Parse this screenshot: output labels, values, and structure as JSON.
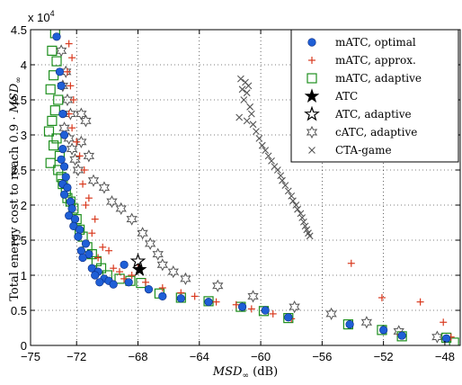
{
  "chart_data": {
    "type": "scatter",
    "xlabel_math": "MSD",
    "xlabel_sub": "∞",
    "xlabel_unit": " (dB)",
    "ylabel_prefix": "Total energy cost to reach 0.9 · ",
    "ylabel_math": "MSD",
    "ylabel_sub": "∞",
    "exponent_base": "x 10",
    "exponent_power": "4",
    "xlim": [
      -75,
      -47
    ],
    "ylim": [
      0,
      45000
    ],
    "xticks": [
      "−75",
      "−72",
      "−68",
      "−64",
      "−60",
      "−56",
      "−52",
      "−48"
    ],
    "xtick_values": [
      -75,
      -72,
      -68,
      -64,
      -60,
      -56,
      -52,
      -48
    ],
    "yticks": [
      "0",
      "0.5",
      "1",
      "1.5",
      "2",
      "2.5",
      "3",
      "3.5",
      "4",
      "4.5"
    ],
    "ytick_values": [
      0,
      5000,
      10000,
      15000,
      20000,
      25000,
      30000,
      35000,
      40000,
      45000
    ],
    "grid": true,
    "legend_position": "top-right",
    "series": [
      {
        "name": "mATC, optimal",
        "marker": "circle",
        "color": "#1f5fd6",
        "x": [
          -73.3,
          -73.1,
          -73.0,
          -72.9,
          -72.8,
          -72.9,
          -73.0,
          -72.8,
          -72.7,
          -72.9,
          -72.6,
          -72.8,
          -72.4,
          -72.3,
          -72.5,
          -72.1,
          -72.2,
          -71.8,
          -71.9,
          -71.4,
          -71.7,
          -71.2,
          -71.6,
          -71.0,
          -70.6,
          -70.8,
          -70.2,
          -70.5,
          -69.9,
          -69.6,
          -68.9,
          -68.6,
          -67.3,
          -66.4,
          -65.2,
          -63.4,
          -61.2,
          -59.7,
          -58.2,
          -54.2,
          -52.0,
          -50.8,
          -47.9
        ],
        "y": [
          44000,
          39000,
          37000,
          33000,
          30000,
          28000,
          26500,
          25500,
          24000,
          23000,
          22500,
          21500,
          20500,
          19500,
          18500,
          18000,
          17000,
          16500,
          15500,
          14500,
          13500,
          13000,
          12500,
          11000,
          10500,
          10000,
          9500,
          9000,
          9200,
          8700,
          11500,
          9000,
          8000,
          7000,
          6700,
          6200,
          5500,
          5000,
          4000,
          3000,
          2200,
          1400,
          1000
        ]
      },
      {
        "name": "mATC, approx.",
        "marker": "plus",
        "color": "#d93a1f",
        "x": [
          -72.5,
          -72.3,
          -72.6,
          -72.4,
          -72.2,
          -72.5,
          -72.3,
          -72.0,
          -71.8,
          -71.5,
          -71.6,
          -71.2,
          -71.4,
          -70.8,
          -71.0,
          -70.3,
          -70.6,
          -69.9,
          -69.6,
          -69.2,
          -68.9,
          -68.4,
          -68.0,
          -67.5,
          -66.4,
          -65.2,
          -64.3,
          -62.9,
          -61.6,
          -60.6,
          -59.2,
          -58.0,
          -54.1,
          -52.1,
          -49.6,
          -48.1,
          -47.6,
          -50.9
        ],
        "y": [
          43000,
          41000,
          39000,
          37000,
          35000,
          33000,
          31000,
          29000,
          27000,
          25000,
          23000,
          21000,
          20000,
          18000,
          16000,
          14000,
          12500,
          13500,
          11000,
          10500,
          9500,
          10000,
          11500,
          9000,
          8200,
          7500,
          7000,
          6200,
          5800,
          5200,
          4500,
          3800,
          11700,
          6800,
          6200,
          3300,
          1200,
          1500
        ]
      },
      {
        "name": "mATC, adaptive",
        "marker": "square",
        "color": "#1e8f1e",
        "x": [
          -73.4,
          -73.6,
          -73.3,
          -73.5,
          -73.7,
          -73.2,
          -73.4,
          -73.6,
          -73.8,
          -73.3,
          -73.5,
          -73.1,
          -73.7,
          -73.2,
          -73.0,
          -72.9,
          -72.7,
          -72.6,
          -72.4,
          -72.2,
          -72.0,
          -71.8,
          -71.6,
          -71.3,
          -71.0,
          -70.7,
          -70.4,
          -70.0,
          -69.2,
          -68.5,
          -67.8,
          -66.6,
          -65.2,
          -63.4,
          -61.3,
          -59.8,
          -58.2,
          -54.3,
          -52.1,
          -50.8,
          -47.9,
          -47.4
        ],
        "y": [
          44500,
          42000,
          40500,
          38500,
          36500,
          35000,
          33500,
          32000,
          30500,
          29500,
          28500,
          27000,
          26000,
          25000,
          24000,
          23000,
          22000,
          21000,
          20500,
          19500,
          18000,
          16500,
          15500,
          14000,
          13000,
          12000,
          11000,
          10000,
          9500,
          9200,
          8900,
          7400,
          6800,
          6300,
          5500,
          4900,
          3900,
          3000,
          2200,
          1300,
          1100,
          400
        ]
      },
      {
        "name": "ATC",
        "marker": "star-filled",
        "color": "#000000",
        "x": [
          -67.9
        ],
        "y": [
          10800
        ]
      },
      {
        "name": "ATC, adaptive",
        "marker": "star-open",
        "color": "#000000",
        "x": [
          -68.0
        ],
        "y": [
          12000
        ]
      },
      {
        "name": "cATC, adaptive",
        "marker": "hexstar",
        "color": "#555555",
        "x": [
          -73.0,
          -72.7,
          -72.9,
          -72.6,
          -72.4,
          -72.8,
          -72.5,
          -72.3,
          -72.1,
          -71.9,
          -71.7,
          -71.4,
          -71.7,
          -71.2,
          -70.9,
          -70.2,
          -69.7,
          -69.1,
          -68.4,
          -67.7,
          -67.2,
          -66.7,
          -66.4,
          -65.7,
          -64.9,
          -62.8,
          -60.5,
          -57.8,
          -55.4,
          -53.1,
          -51.0,
          -48.5
        ],
        "y": [
          42000,
          39000,
          37000,
          35000,
          33000,
          31000,
          29500,
          28000,
          26500,
          25000,
          33000,
          32000,
          29000,
          27000,
          23500,
          22500,
          20500,
          19500,
          18000,
          16000,
          14500,
          13000,
          11500,
          10500,
          9500,
          8500,
          7000,
          5500,
          4500,
          3300,
          2000,
          1200
        ]
      },
      {
        "name": "CTA-game",
        "marker": "x",
        "color": "#555555",
        "x": [
          -61.3,
          -61.0,
          -60.8,
          -61.2,
          -60.9,
          -61.1,
          -60.7,
          -60.6,
          -60.9,
          -61.4,
          -60.5,
          -60.3,
          -60.1,
          -59.9,
          -59.7,
          -59.5,
          -59.3,
          -59.1,
          -58.9,
          -58.7,
          -58.6,
          -58.4,
          -58.2,
          -58.0,
          -57.9,
          -57.7,
          -57.6,
          -57.4,
          -57.3,
          -57.2,
          -57.1,
          -57.0,
          -56.9,
          -56.8
        ],
        "y": [
          38000,
          37500,
          37000,
          36500,
          36000,
          35000,
          34000,
          33000,
          32000,
          32500,
          31500,
          30500,
          29500,
          28500,
          27800,
          27000,
          26300,
          25500,
          25000,
          24200,
          23500,
          22800,
          22000,
          21300,
          20600,
          20000,
          19400,
          18800,
          18200,
          17600,
          17000,
          16500,
          16000,
          15600
        ]
      }
    ]
  }
}
